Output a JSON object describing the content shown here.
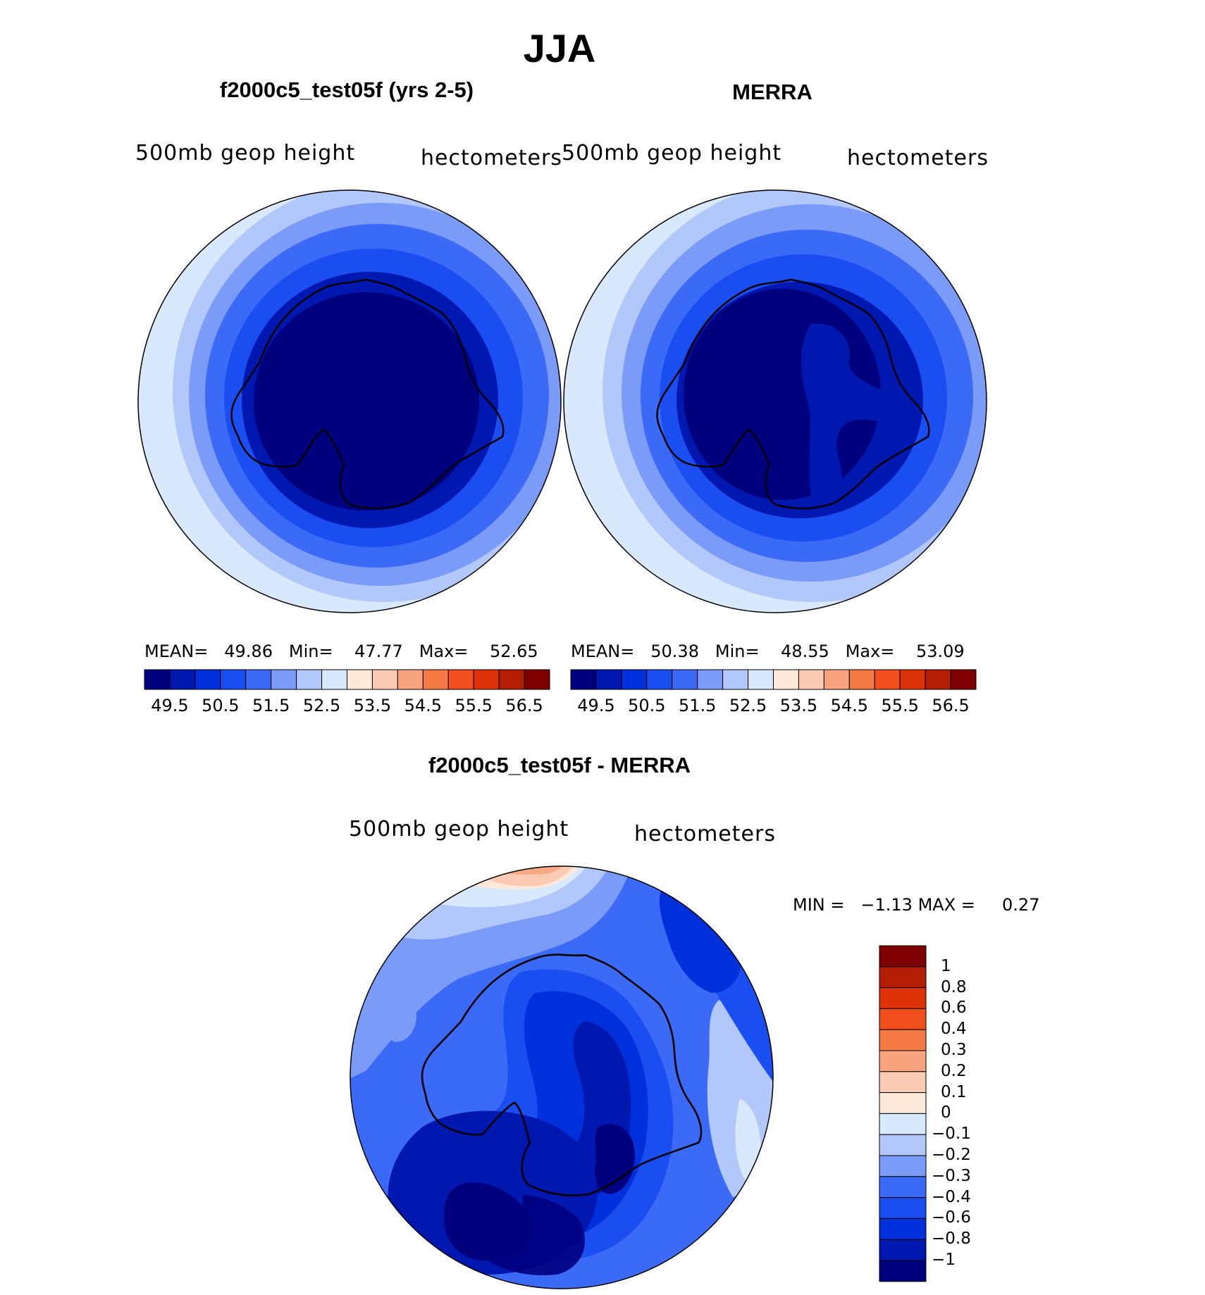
{
  "figure_title": "JJA",
  "colors": {
    "abs_scale": [
      "#00007f",
      "#0018b0",
      "#0030dc",
      "#1a4ef0",
      "#3a6af6",
      "#7a9cf8",
      "#b2c8fb",
      "#d8e8fd",
      "#fde9da",
      "#fbcab2",
      "#f8a47e",
      "#f57a46",
      "#f24f1e",
      "#dd3208",
      "#b21d04",
      "#7f0000"
    ],
    "diff_scale": [
      "#00007f",
      "#0018b0",
      "#0030dc",
      "#1a4ef0",
      "#3a6af6",
      "#7a9cf8",
      "#b2c8fb",
      "#d8e8fd",
      "#fde9da",
      "#fbcab2",
      "#f8a47e",
      "#f57a46",
      "#f24f1e",
      "#dd3208",
      "#b21d04",
      "#7f0000"
    ]
  },
  "panels": [
    {
      "title": "f2000c5_test05f (yrs 2-5)",
      "variable": "500mb geop height",
      "units": "hectometers",
      "stats": {
        "mean_label": "MEAN=",
        "mean": "49.86",
        "min_label": "Min=",
        "min": "47.77",
        "max_label": "Max=",
        "max": "52.65"
      },
      "colorbar_labels": [
        "49.5",
        "50.5",
        "51.5",
        "52.5",
        "53.5",
        "54.5",
        "55.5",
        "56.5"
      ]
    },
    {
      "title": "MERRA",
      "variable": "500mb geop height",
      "units": "hectometers",
      "stats": {
        "mean_label": "MEAN=",
        "mean": "50.38",
        "min_label": "Min=",
        "min": "48.55",
        "max_label": "Max=",
        "max": "53.09"
      },
      "colorbar_labels": [
        "49.5",
        "50.5",
        "51.5",
        "52.5",
        "53.5",
        "54.5",
        "55.5",
        "56.5"
      ]
    }
  ],
  "diff_panel": {
    "title": "f2000c5_test05f - MERRA",
    "variable": "500mb geop height",
    "units": "hectometers",
    "min_label": "MIN =",
    "min": "−1.13",
    "max_label": "MAX =",
    "max": "0.27",
    "colorbar_labels": [
      "1",
      "0.8",
      "0.6",
      "0.4",
      "0.3",
      "0.2",
      "0.1",
      "0",
      "−0.1",
      "−0.2",
      "−0.3",
      "−0.4",
      "−0.6",
      "−0.8",
      "−1"
    ]
  }
}
